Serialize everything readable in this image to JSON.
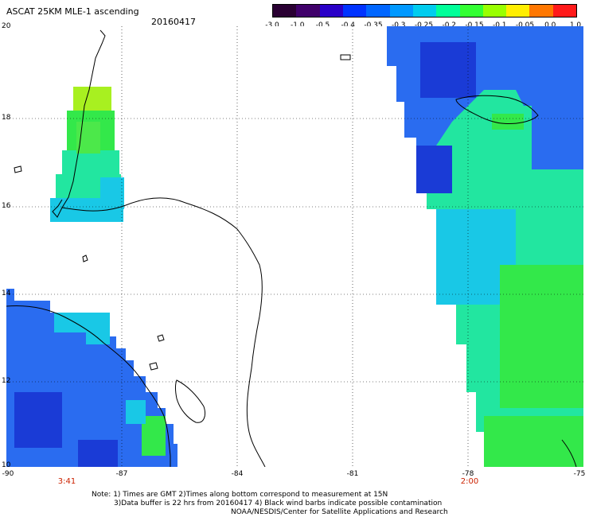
{
  "header": {
    "title": "ASCAT 25KM MLE-1 ascending",
    "date": "20160417"
  },
  "colorbar": {
    "labels": [
      "-3.0",
      "-1.0",
      "-0.5",
      "-0.4",
      "-0.35",
      "-0.3",
      "-0.25",
      "-0.2",
      "-0.15",
      "-0.1",
      "-0.05",
      "0.0",
      "1.0"
    ],
    "colors": [
      "#2a0033",
      "#40006a",
      "#2a00c8",
      "#0033ff",
      "#0066ff",
      "#0099ff",
      "#00ccee",
      "#00ff99",
      "#33ff33",
      "#99ff00",
      "#ffee00",
      "#ff7700",
      "#ff1a1a"
    ]
  },
  "axes": {
    "lat_labels": [
      "20",
      "18",
      "16",
      "14",
      "12",
      "10"
    ],
    "lon_labels": [
      "-90",
      "-87",
      "-84",
      "-81",
      "-78",
      "-75"
    ],
    "pass_times": [
      "3:41",
      "2:00"
    ]
  },
  "notes": {
    "line1": "Note: 1) Times are GMT 2)Times along bottom correspond to measurement at 15N",
    "line2": "3)Data buffer is 22 hrs from 20160417 4) Black wind barbs indicate possible contamination",
    "line3": "NOAA/NESDIS/Center for Satellite Applications and Research"
  },
  "colors": {
    "deep_blue": "#1a3bd6",
    "mid_blue": "#2a6cf0",
    "cyan": "#19c8e6",
    "cyan_green": "#22e6a0",
    "green": "#33e84a",
    "yellow_green": "#a8f020",
    "pass_time_red": "#cc2200"
  }
}
